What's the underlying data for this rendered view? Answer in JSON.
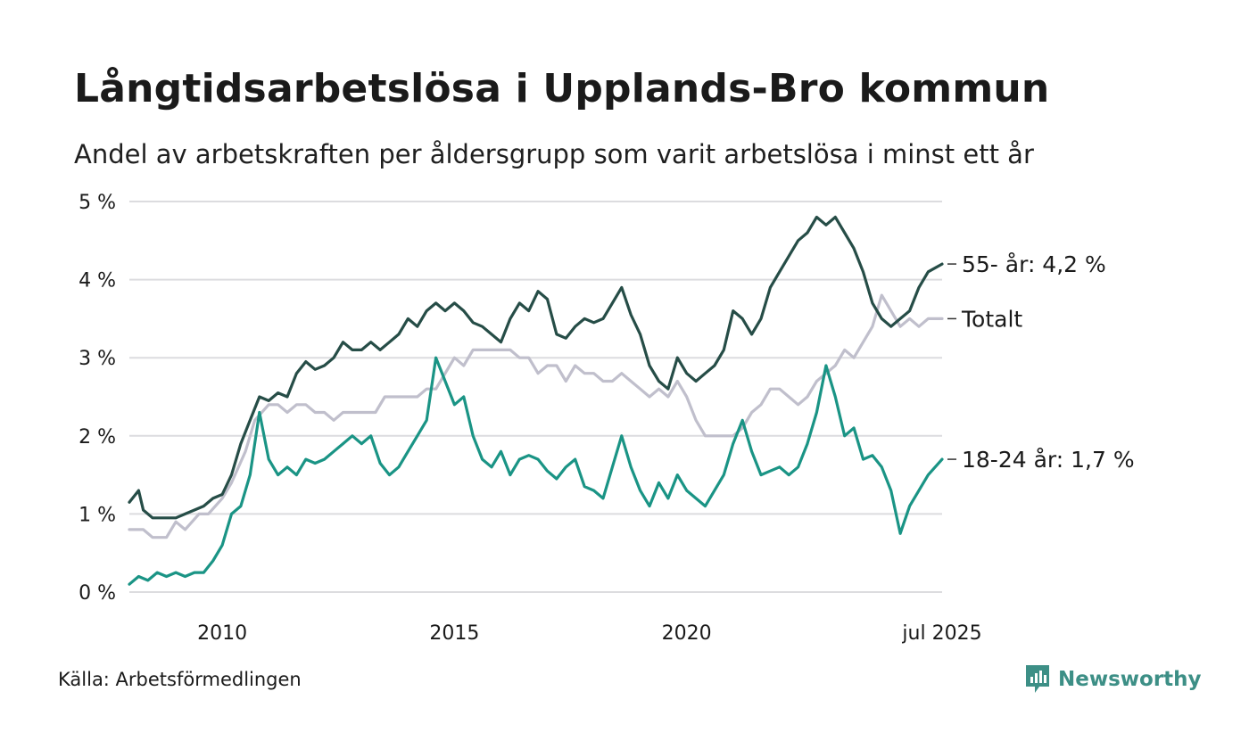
{
  "title": "Långtidsarbetslösa i Upplands-Bro kommun",
  "subtitle": "Andel av arbetskraften per åldersgrupp som varit arbetslösa i minst ett år",
  "source": "Källa: Arbetsförmedlingen",
  "brand": "Newsworthy",
  "colors": {
    "older": "#264d47",
    "total": "#c0bfcc",
    "young": "#1a9485",
    "grid": "#dcdcdf",
    "brand": "#3d8f86"
  },
  "chart_data": {
    "type": "line",
    "title": "Långtidsarbetslösa i Upplands-Bro kommun",
    "subtitle": "Andel av arbetskraften per åldersgrupp som varit arbetslösa i minst ett år",
    "xlabel": "",
    "ylabel": "",
    "x_ticks": [
      {
        "x": 2010,
        "label": "2010"
      },
      {
        "x": 2015,
        "label": "2015"
      },
      {
        "x": 2020,
        "label": "2020"
      },
      {
        "x": 2025.5,
        "label": "jul 2025"
      }
    ],
    "y_ticks": [
      {
        "y": 0,
        "label": "0 %"
      },
      {
        "y": 1,
        "label": "1 %"
      },
      {
        "y": 2,
        "label": "2 %"
      },
      {
        "y": 3,
        "label": "3 %"
      },
      {
        "y": 4,
        "label": "4 %"
      },
      {
        "y": 5,
        "label": "5 %"
      }
    ],
    "xlim": [
      2008.0,
      2025.5
    ],
    "ylim": [
      0,
      5
    ],
    "grid": true,
    "legend": "end-labels-right",
    "series": [
      {
        "name": "Totalt",
        "end_label": "Totalt",
        "color_key": "total",
        "points": [
          [
            2008.0,
            0.8
          ],
          [
            2008.3,
            0.8
          ],
          [
            2008.5,
            0.7
          ],
          [
            2008.8,
            0.7
          ],
          [
            2009.0,
            0.9
          ],
          [
            2009.2,
            0.8
          ],
          [
            2009.5,
            1.0
          ],
          [
            2009.7,
            1.0
          ],
          [
            2010.0,
            1.2
          ],
          [
            2010.2,
            1.4
          ],
          [
            2010.5,
            1.8
          ],
          [
            2010.7,
            2.2
          ],
          [
            2011.0,
            2.4
          ],
          [
            2011.2,
            2.4
          ],
          [
            2011.4,
            2.3
          ],
          [
            2011.6,
            2.4
          ],
          [
            2011.8,
            2.4
          ],
          [
            2012.0,
            2.3
          ],
          [
            2012.2,
            2.3
          ],
          [
            2012.4,
            2.2
          ],
          [
            2012.6,
            2.3
          ],
          [
            2012.8,
            2.3
          ],
          [
            2013.0,
            2.3
          ],
          [
            2013.3,
            2.3
          ],
          [
            2013.5,
            2.5
          ],
          [
            2013.8,
            2.5
          ],
          [
            2014.0,
            2.5
          ],
          [
            2014.2,
            2.5
          ],
          [
            2014.4,
            2.6
          ],
          [
            2014.6,
            2.6
          ],
          [
            2014.8,
            2.8
          ],
          [
            2015.0,
            3.0
          ],
          [
            2015.2,
            2.9
          ],
          [
            2015.4,
            3.1
          ],
          [
            2015.6,
            3.1
          ],
          [
            2015.8,
            3.1
          ],
          [
            2016.0,
            3.1
          ],
          [
            2016.2,
            3.1
          ],
          [
            2016.4,
            3.0
          ],
          [
            2016.6,
            3.0
          ],
          [
            2016.8,
            2.8
          ],
          [
            2017.0,
            2.9
          ],
          [
            2017.2,
            2.9
          ],
          [
            2017.4,
            2.7
          ],
          [
            2017.6,
            2.9
          ],
          [
            2017.8,
            2.8
          ],
          [
            2018.0,
            2.8
          ],
          [
            2018.2,
            2.7
          ],
          [
            2018.4,
            2.7
          ],
          [
            2018.6,
            2.8
          ],
          [
            2018.8,
            2.7
          ],
          [
            2019.0,
            2.6
          ],
          [
            2019.2,
            2.5
          ],
          [
            2019.4,
            2.6
          ],
          [
            2019.6,
            2.5
          ],
          [
            2019.8,
            2.7
          ],
          [
            2020.0,
            2.5
          ],
          [
            2020.2,
            2.2
          ],
          [
            2020.4,
            2.0
          ],
          [
            2020.6,
            2.0
          ],
          [
            2020.8,
            2.0
          ],
          [
            2021.0,
            2.0
          ],
          [
            2021.2,
            2.1
          ],
          [
            2021.4,
            2.3
          ],
          [
            2021.6,
            2.4
          ],
          [
            2021.8,
            2.6
          ],
          [
            2022.0,
            2.6
          ],
          [
            2022.2,
            2.5
          ],
          [
            2022.4,
            2.4
          ],
          [
            2022.6,
            2.5
          ],
          [
            2022.8,
            2.7
          ],
          [
            2023.0,
            2.8
          ],
          [
            2023.2,
            2.9
          ],
          [
            2023.4,
            3.1
          ],
          [
            2023.6,
            3.0
          ],
          [
            2023.8,
            3.2
          ],
          [
            2024.0,
            3.4
          ],
          [
            2024.2,
            3.8
          ],
          [
            2024.4,
            3.6
          ],
          [
            2024.6,
            3.4
          ],
          [
            2024.8,
            3.5
          ],
          [
            2025.0,
            3.4
          ],
          [
            2025.2,
            3.5
          ],
          [
            2025.5,
            3.5
          ]
        ]
      },
      {
        "name": "55- år",
        "end_label": "55- år: 4,2 %",
        "color_key": "older",
        "points": [
          [
            2008.0,
            1.15
          ],
          [
            2008.2,
            1.3
          ],
          [
            2008.3,
            1.05
          ],
          [
            2008.5,
            0.95
          ],
          [
            2008.8,
            0.95
          ],
          [
            2009.0,
            0.95
          ],
          [
            2009.2,
            1.0
          ],
          [
            2009.4,
            1.05
          ],
          [
            2009.6,
            1.1
          ],
          [
            2009.8,
            1.2
          ],
          [
            2010.0,
            1.25
          ],
          [
            2010.2,
            1.5
          ],
          [
            2010.4,
            1.9
          ],
          [
            2010.6,
            2.2
          ],
          [
            2010.8,
            2.5
          ],
          [
            2011.0,
            2.45
          ],
          [
            2011.2,
            2.55
          ],
          [
            2011.4,
            2.5
          ],
          [
            2011.6,
            2.8
          ],
          [
            2011.8,
            2.95
          ],
          [
            2012.0,
            2.85
          ],
          [
            2012.2,
            2.9
          ],
          [
            2012.4,
            3.0
          ],
          [
            2012.6,
            3.2
          ],
          [
            2012.8,
            3.1
          ],
          [
            2013.0,
            3.1
          ],
          [
            2013.2,
            3.2
          ],
          [
            2013.4,
            3.1
          ],
          [
            2013.6,
            3.2
          ],
          [
            2013.8,
            3.3
          ],
          [
            2014.0,
            3.5
          ],
          [
            2014.2,
            3.4
          ],
          [
            2014.4,
            3.6
          ],
          [
            2014.6,
            3.7
          ],
          [
            2014.8,
            3.6
          ],
          [
            2015.0,
            3.7
          ],
          [
            2015.2,
            3.6
          ],
          [
            2015.4,
            3.45
          ],
          [
            2015.6,
            3.4
          ],
          [
            2015.8,
            3.3
          ],
          [
            2016.0,
            3.2
          ],
          [
            2016.2,
            3.5
          ],
          [
            2016.4,
            3.7
          ],
          [
            2016.6,
            3.6
          ],
          [
            2016.8,
            3.85
          ],
          [
            2017.0,
            3.75
          ],
          [
            2017.2,
            3.3
          ],
          [
            2017.4,
            3.25
          ],
          [
            2017.6,
            3.4
          ],
          [
            2017.8,
            3.5
          ],
          [
            2018.0,
            3.45
          ],
          [
            2018.2,
            3.5
          ],
          [
            2018.4,
            3.7
          ],
          [
            2018.6,
            3.9
          ],
          [
            2018.8,
            3.55
          ],
          [
            2019.0,
            3.3
          ],
          [
            2019.2,
            2.9
          ],
          [
            2019.4,
            2.7
          ],
          [
            2019.6,
            2.6
          ],
          [
            2019.8,
            3.0
          ],
          [
            2020.0,
            2.8
          ],
          [
            2020.2,
            2.7
          ],
          [
            2020.4,
            2.8
          ],
          [
            2020.6,
            2.9
          ],
          [
            2020.8,
            3.1
          ],
          [
            2021.0,
            3.6
          ],
          [
            2021.2,
            3.5
          ],
          [
            2021.4,
            3.3
          ],
          [
            2021.6,
            3.5
          ],
          [
            2021.8,
            3.9
          ],
          [
            2022.0,
            4.1
          ],
          [
            2022.2,
            4.3
          ],
          [
            2022.4,
            4.5
          ],
          [
            2022.6,
            4.6
          ],
          [
            2022.8,
            4.8
          ],
          [
            2023.0,
            4.7
          ],
          [
            2023.2,
            4.8
          ],
          [
            2023.4,
            4.6
          ],
          [
            2023.6,
            4.4
          ],
          [
            2023.8,
            4.1
          ],
          [
            2024.0,
            3.7
          ],
          [
            2024.2,
            3.5
          ],
          [
            2024.4,
            3.4
          ],
          [
            2024.6,
            3.5
          ],
          [
            2024.8,
            3.6
          ],
          [
            2025.0,
            3.9
          ],
          [
            2025.2,
            4.1
          ],
          [
            2025.5,
            4.2
          ]
        ]
      },
      {
        "name": "18-24 år",
        "end_label": "18-24 år: 1,7 %",
        "color_key": "young",
        "points": [
          [
            2008.0,
            0.1
          ],
          [
            2008.2,
            0.2
          ],
          [
            2008.4,
            0.15
          ],
          [
            2008.6,
            0.25
          ],
          [
            2008.8,
            0.2
          ],
          [
            2009.0,
            0.25
          ],
          [
            2009.2,
            0.2
          ],
          [
            2009.4,
            0.25
          ],
          [
            2009.6,
            0.25
          ],
          [
            2009.8,
            0.4
          ],
          [
            2010.0,
            0.6
          ],
          [
            2010.2,
            1.0
          ],
          [
            2010.4,
            1.1
          ],
          [
            2010.6,
            1.5
          ],
          [
            2010.8,
            2.3
          ],
          [
            2011.0,
            1.7
          ],
          [
            2011.2,
            1.5
          ],
          [
            2011.4,
            1.6
          ],
          [
            2011.6,
            1.5
          ],
          [
            2011.8,
            1.7
          ],
          [
            2012.0,
            1.65
          ],
          [
            2012.2,
            1.7
          ],
          [
            2012.4,
            1.8
          ],
          [
            2012.6,
            1.9
          ],
          [
            2012.8,
            2.0
          ],
          [
            2013.0,
            1.9
          ],
          [
            2013.2,
            2.0
          ],
          [
            2013.4,
            1.65
          ],
          [
            2013.6,
            1.5
          ],
          [
            2013.8,
            1.6
          ],
          [
            2014.0,
            1.8
          ],
          [
            2014.2,
            2.0
          ],
          [
            2014.4,
            2.2
          ],
          [
            2014.6,
            3.0
          ],
          [
            2014.8,
            2.7
          ],
          [
            2015.0,
            2.4
          ],
          [
            2015.2,
            2.5
          ],
          [
            2015.4,
            2.0
          ],
          [
            2015.6,
            1.7
          ],
          [
            2015.8,
            1.6
          ],
          [
            2016.0,
            1.8
          ],
          [
            2016.2,
            1.5
          ],
          [
            2016.4,
            1.7
          ],
          [
            2016.6,
            1.75
          ],
          [
            2016.8,
            1.7
          ],
          [
            2017.0,
            1.55
          ],
          [
            2017.2,
            1.45
          ],
          [
            2017.4,
            1.6
          ],
          [
            2017.6,
            1.7
          ],
          [
            2017.8,
            1.35
          ],
          [
            2018.0,
            1.3
          ],
          [
            2018.2,
            1.2
          ],
          [
            2018.4,
            1.6
          ],
          [
            2018.6,
            2.0
          ],
          [
            2018.8,
            1.6
          ],
          [
            2019.0,
            1.3
          ],
          [
            2019.2,
            1.1
          ],
          [
            2019.4,
            1.4
          ],
          [
            2019.6,
            1.2
          ],
          [
            2019.8,
            1.5
          ],
          [
            2020.0,
            1.3
          ],
          [
            2020.2,
            1.2
          ],
          [
            2020.4,
            1.1
          ],
          [
            2020.6,
            1.3
          ],
          [
            2020.8,
            1.5
          ],
          [
            2021.0,
            1.9
          ],
          [
            2021.2,
            2.2
          ],
          [
            2021.4,
            1.8
          ],
          [
            2021.6,
            1.5
          ],
          [
            2021.8,
            1.55
          ],
          [
            2022.0,
            1.6
          ],
          [
            2022.2,
            1.5
          ],
          [
            2022.4,
            1.6
          ],
          [
            2022.6,
            1.9
          ],
          [
            2022.8,
            2.3
          ],
          [
            2023.0,
            2.9
          ],
          [
            2023.2,
            2.5
          ],
          [
            2023.4,
            2.0
          ],
          [
            2023.6,
            2.1
          ],
          [
            2023.8,
            1.7
          ],
          [
            2024.0,
            1.75
          ],
          [
            2024.2,
            1.6
          ],
          [
            2024.4,
            1.3
          ],
          [
            2024.6,
            0.75
          ],
          [
            2024.8,
            1.1
          ],
          [
            2025.0,
            1.3
          ],
          [
            2025.2,
            1.5
          ],
          [
            2025.5,
            1.7
          ]
        ]
      }
    ]
  }
}
